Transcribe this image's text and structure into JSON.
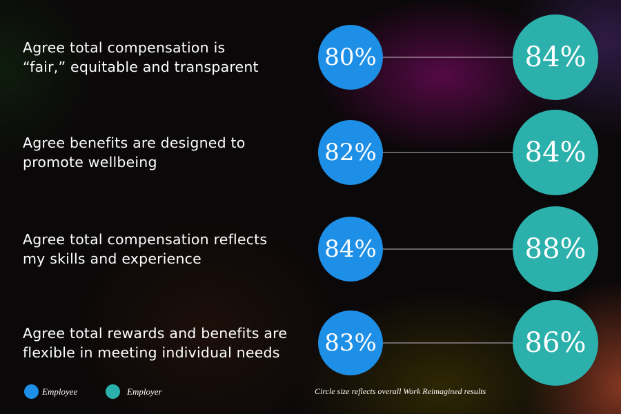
{
  "chart_data": {
    "type": "bubble-dumbbell",
    "categories": [
      "Agree total compensation is\n“fair,” equitable and transparent",
      "Agree benefits are designed to\npromote wellbeing",
      "Agree total compensation reflects\nmy skills and experience",
      "Agree total rewards and benefits are\nflexible in meeting individual needs"
    ],
    "series": [
      {
        "name": "Employee",
        "color": "#1e8fe6",
        "values": [
          80,
          82,
          84,
          83
        ],
        "labels": [
          "80%",
          "82%",
          "84%",
          "83%"
        ]
      },
      {
        "name": "Employer",
        "color": "#2bb0ab",
        "values": [
          84,
          84,
          88,
          86
        ],
        "labels": [
          "84%",
          "84%",
          "88%",
          "86%"
        ]
      }
    ],
    "legend": "bottom-left",
    "note": "Circle size reflects overall Work Reimagined results"
  }
}
